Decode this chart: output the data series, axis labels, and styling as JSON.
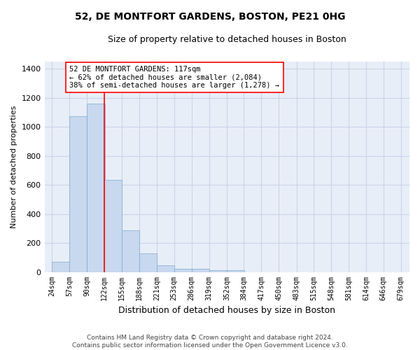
{
  "title": "52, DE MONTFORT GARDENS, BOSTON, PE21 0HG",
  "subtitle": "Size of property relative to detached houses in Boston",
  "xlabel": "Distribution of detached houses by size in Boston",
  "ylabel": "Number of detached properties",
  "bar_left_edges": [
    24,
    57,
    90,
    122,
    155,
    188,
    221,
    253,
    286,
    319,
    352,
    384,
    417,
    450,
    483,
    515,
    548,
    581,
    614,
    646
  ],
  "bar_widths": [
    33,
    33,
    33,
    33,
    33,
    33,
    33,
    33,
    33,
    33,
    33,
    33,
    33,
    33,
    33,
    33,
    33,
    33,
    33,
    33
  ],
  "bar_heights": [
    70,
    1075,
    1160,
    635,
    285,
    130,
    45,
    20,
    20,
    10,
    10,
    0,
    0,
    0,
    0,
    0,
    0,
    0,
    0,
    0
  ],
  "bar_color": "#c8d8ee",
  "bar_edgecolor": "#7aaad0",
  "vline_x": 122,
  "vline_color": "red",
  "vline_linewidth": 1.2,
  "annotation_text": "52 DE MONTFORT GARDENS: 117sqm\n← 62% of detached houses are smaller (2,084)\n38% of semi-detached houses are larger (1,278) →",
  "annotation_box_color": "white",
  "annotation_box_edgecolor": "red",
  "ylim": [
    0,
    1450
  ],
  "xlim": [
    10,
    695
  ],
  "tick_labels": [
    "24sqm",
    "57sqm",
    "90sqm",
    "122sqm",
    "155sqm",
    "188sqm",
    "221sqm",
    "253sqm",
    "286sqm",
    "319sqm",
    "352sqm",
    "384sqm",
    "417sqm",
    "450sqm",
    "483sqm",
    "515sqm",
    "548sqm",
    "581sqm",
    "614sqm",
    "646sqm",
    "679sqm"
  ],
  "tick_positions": [
    24,
    57,
    90,
    122,
    155,
    188,
    221,
    253,
    286,
    319,
    352,
    384,
    417,
    450,
    483,
    515,
    548,
    581,
    614,
    646,
    679
  ],
  "ytick_positions": [
    0,
    200,
    400,
    600,
    800,
    1000,
    1200,
    1400
  ],
  "grid_color": "#c8d4e8",
  "background_color": "#e8eef8",
  "footer_text": "Contains HM Land Registry data © Crown copyright and database right 2024.\nContains public sector information licensed under the Open Government Licence v3.0.",
  "title_fontsize": 10,
  "subtitle_fontsize": 9,
  "ylabel_fontsize": 8,
  "xlabel_fontsize": 9,
  "annotation_fontsize": 7.5,
  "tick_fontsize": 7,
  "ytick_fontsize": 8,
  "footer_fontsize": 6.5
}
